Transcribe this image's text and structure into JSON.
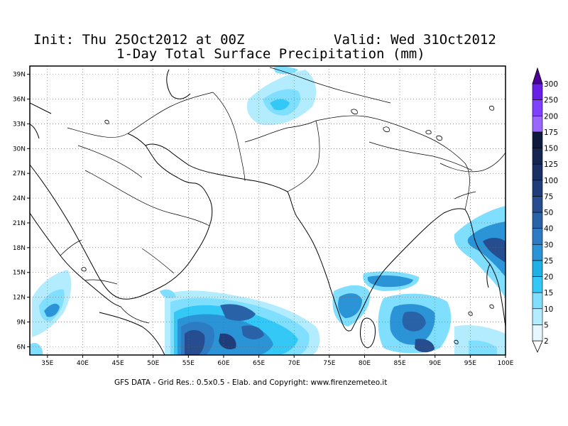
{
  "header": {
    "init_label": "Init: Thu 25Oct2012 at 00Z",
    "valid_label": "Valid: Wed 31Oct2012",
    "title": "1-Day Total Surface Precipitation (mm)"
  },
  "footer": {
    "credit": "GFS DATA - Grid Res.: 0.5x0.5 - Elab. and Copyright: www.firenzemeteo.it"
  },
  "map": {
    "lon_range": [
      32.5,
      100
    ],
    "lat_range": [
      5,
      40
    ],
    "lon_ticks": [
      "35E",
      "40E",
      "45E",
      "50E",
      "55E",
      "60E",
      "65E",
      "70E",
      "75E",
      "80E",
      "85E",
      "90E",
      "95E",
      "100E"
    ],
    "lat_ticks": [
      "6N",
      "9N",
      "12N",
      "15N",
      "18N",
      "21N",
      "24N",
      "27N",
      "30N",
      "33N",
      "36N",
      "39N"
    ]
  },
  "colorbar": {
    "levels": [
      "2",
      "5",
      "10",
      "15",
      "20",
      "25",
      "30",
      "40",
      "50",
      "75",
      "100",
      "125",
      "150",
      "175",
      "200",
      "250",
      "300"
    ],
    "colors": [
      "#e6f7ff",
      "#b3ecff",
      "#80dfff",
      "#33c8f5",
      "#1fb0e6",
      "#2a94d6",
      "#2d7bc2",
      "#2a62a8",
      "#264d8f",
      "#1f3d7a",
      "#1a2f66",
      "#142552",
      "#0d1a3d",
      "#9966ff",
      "#8040ff",
      "#6a1fe6",
      "#4d0099"
    ]
  }
}
